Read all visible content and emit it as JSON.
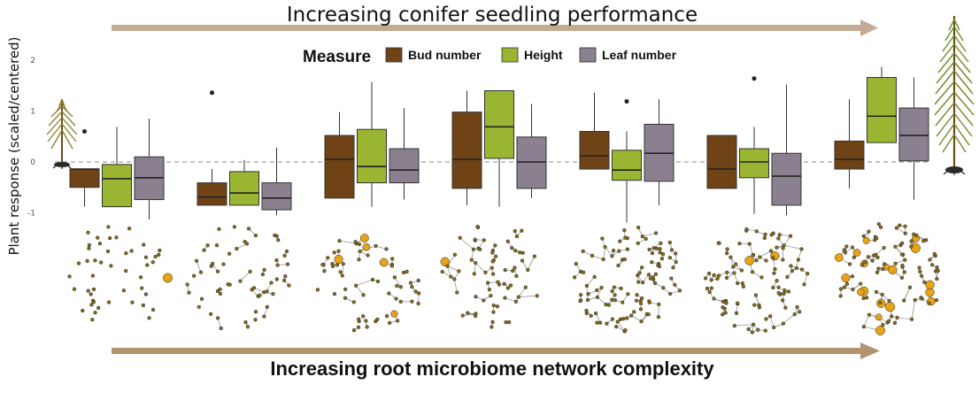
{
  "top_arrow_label": "Increasing conifer seedling performance",
  "bottom_arrow_label": "Increasing root microbiome network complexity",
  "colors": {
    "arrow": "#c4ab94",
    "arrow_bottom": "#b4926e",
    "node": "#e8a317",
    "edge": "#888888"
  },
  "chart_data": {
    "type": "box",
    "ylabel": "Plant response (scaled/centered)",
    "yticks": [
      2,
      1,
      0,
      -1
    ],
    "ylim": [
      -1.25,
      2.2
    ],
    "reference_line": 0,
    "legend": {
      "title": "Measure",
      "position": "top-center",
      "items": [
        {
          "name": "Bud number",
          "color": "#6f4316"
        },
        {
          "name": "Height",
          "color": "#9ab532"
        },
        {
          "name": "Leaf number",
          "color": "#8a8090"
        }
      ]
    },
    "groups": [
      {
        "boxes": [
          {
            "measure": "Bud number",
            "q1": -0.5,
            "median": -0.14,
            "q3": -0.14,
            "whisker_low": -0.88,
            "whisker_high": -0.14,
            "outliers": []
          },
          {
            "measure": "Height",
            "q1": -0.88,
            "median": -0.33,
            "q3": -0.05,
            "whisker_low": -0.88,
            "whisker_high": 0.69,
            "outliers": []
          },
          {
            "measure": "Leaf number",
            "q1": -0.74,
            "median": -0.31,
            "q3": 0.1,
            "whisker_low": -1.13,
            "whisker_high": 0.85,
            "outliers": []
          }
        ],
        "outliers": [
          {
            "measure": "Bud number",
            "value": 0.6
          }
        ]
      },
      {
        "boxes": [
          {
            "measure": "Bud number",
            "q1": -0.85,
            "median": -0.69,
            "q3": -0.41,
            "whisker_low": -0.85,
            "whisker_high": -0.14,
            "outliers": []
          },
          {
            "measure": "Height",
            "q1": -0.85,
            "median": -0.61,
            "q3": -0.19,
            "whisker_low": -0.85,
            "whisker_high": 0.04,
            "outliers": []
          },
          {
            "measure": "Leaf number",
            "q1": -0.94,
            "median": -0.71,
            "q3": -0.41,
            "whisker_low": -1.05,
            "whisker_high": 0.28,
            "outliers": []
          }
        ],
        "outliers": [
          {
            "measure": "Bud number",
            "value": 1.36
          }
        ]
      },
      {
        "boxes": [
          {
            "measure": "Bud number",
            "q1": -0.71,
            "median": 0.05,
            "q3": 0.52,
            "whisker_low": -0.71,
            "whisker_high": 0.98,
            "outliers": []
          },
          {
            "measure": "Height",
            "q1": -0.41,
            "median": -0.09,
            "q3": 0.64,
            "whisker_low": -0.88,
            "whisker_high": 1.57,
            "outliers": []
          },
          {
            "measure": "Leaf number",
            "q1": -0.41,
            "median": -0.16,
            "q3": 0.26,
            "whisker_low": -0.74,
            "whisker_high": 1.06,
            "outliers": []
          }
        ],
        "outliers": []
      },
      {
        "boxes": [
          {
            "measure": "Bud number",
            "q1": -0.52,
            "median": 0.05,
            "q3": 0.98,
            "whisker_low": -0.85,
            "whisker_high": 1.4,
            "outliers": []
          },
          {
            "measure": "Height",
            "q1": 0.07,
            "median": 0.69,
            "q3": 1.4,
            "whisker_low": -0.88,
            "whisker_high": 1.4,
            "outliers": []
          },
          {
            "measure": "Leaf number",
            "q1": -0.52,
            "median": 0.0,
            "q3": 0.49,
            "whisker_low": -0.71,
            "whisker_high": 1.14,
            "outliers": []
          }
        ],
        "outliers": []
      },
      {
        "boxes": [
          {
            "measure": "Bud number",
            "q1": -0.14,
            "median": 0.12,
            "q3": 0.6,
            "whisker_low": -0.14,
            "whisker_high": 1.36,
            "outliers": []
          },
          {
            "measure": "Height",
            "q1": -0.36,
            "median": -0.16,
            "q3": 0.23,
            "whisker_low": -1.19,
            "whisker_high": 0.6,
            "outliers": []
          },
          {
            "measure": "Leaf number",
            "q1": -0.38,
            "median": 0.17,
            "q3": 0.74,
            "whisker_low": -0.85,
            "whisker_high": 1.23,
            "outliers": []
          }
        ],
        "outliers": [
          {
            "measure": "Height",
            "value": 1.19
          }
        ]
      },
      {
        "boxes": [
          {
            "measure": "Bud number",
            "q1": -0.52,
            "median": -0.14,
            "q3": 0.52,
            "whisker_low": -0.52,
            "whisker_high": 0.52,
            "outliers": []
          },
          {
            "measure": "Height",
            "q1": -0.31,
            "median": 0.0,
            "q3": 0.26,
            "whisker_low": -1.02,
            "whisker_high": 0.69,
            "outliers": []
          },
          {
            "measure": "Leaf number",
            "q1": -0.85,
            "median": -0.28,
            "q3": 0.17,
            "whisker_low": -1.05,
            "whisker_high": 1.52,
            "outliers": []
          }
        ],
        "outliers": [
          {
            "measure": "Height",
            "value": 1.64
          }
        ]
      },
      {
        "boxes": [
          {
            "measure": "Bud number",
            "q1": -0.14,
            "median": 0.05,
            "q3": 0.41,
            "whisker_low": -0.52,
            "whisker_high": 1.23,
            "outliers": []
          },
          {
            "measure": "Height",
            "q1": 0.38,
            "median": 0.9,
            "q3": 1.66,
            "whisker_low": 0.38,
            "whisker_high": 1.87,
            "outliers": []
          },
          {
            "measure": "Leaf number",
            "q1": 0.02,
            "median": 0.52,
            "q3": 1.06,
            "whisker_low": -0.74,
            "whisker_high": 1.66,
            "outliers": []
          }
        ],
        "outliers": []
      }
    ]
  }
}
